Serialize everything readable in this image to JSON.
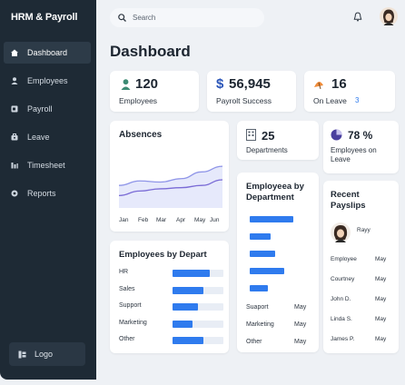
{
  "app": {
    "title": "HRM & Payroll"
  },
  "sidebar": {
    "items": [
      {
        "label": "Dashboard",
        "icon": "home-icon",
        "active": true
      },
      {
        "label": "Employees",
        "icon": "user-icon",
        "active": false
      },
      {
        "label": "Payroll",
        "icon": "wallet-icon",
        "active": false
      },
      {
        "label": "Leave",
        "icon": "briefcase-icon",
        "active": false
      },
      {
        "label": "Timesheet",
        "icon": "chart-icon",
        "active": false
      },
      {
        "label": "Reports",
        "icon": "report-icon",
        "active": false
      }
    ],
    "logout_label": "Logo"
  },
  "header": {
    "search_placeholder": "Search",
    "page_title": "Dashboard"
  },
  "stats": {
    "employees": {
      "value": "120",
      "label": "Employees"
    },
    "payroll": {
      "symbol": "$",
      "value": "56,945",
      "label": "Payrolt Success"
    },
    "leave": {
      "value": "16",
      "label": "On Leave",
      "extra": "3"
    },
    "departments": {
      "value": "25",
      "label": "Departments"
    },
    "percent": {
      "value": "78 %",
      "label": "Employees on Leave"
    }
  },
  "absences": {
    "title": "Absences",
    "months": [
      "Jan",
      "Feb",
      "Mar",
      "Apr",
      "May",
      "Jun"
    ]
  },
  "chart_data": {
    "type": "line",
    "title": "Absences",
    "categories": [
      "Jan",
      "Feb",
      "Mar",
      "Apr",
      "May",
      "Jun"
    ],
    "series": [
      {
        "values": [
          40,
          48,
          46,
          52,
          64,
          74
        ]
      },
      {
        "values": [
          22,
          30,
          34,
          36,
          40,
          50
        ]
      }
    ],
    "ylim": [
      0,
      100
    ],
    "grid": false,
    "legend": "none",
    "colors": [
      "#8f95e8",
      "#7a6bd6"
    ]
  },
  "emp_by_dept_bottom": {
    "title": "Employees by Depart",
    "rows": [
      {
        "label": "HR",
        "value": 0.73
      },
      {
        "label": "Sales",
        "value": 0.6
      },
      {
        "label": "Support",
        "value": 0.5
      },
      {
        "label": "Marketing",
        "value": 0.4
      },
      {
        "label": "Other",
        "value": 0.6
      }
    ]
  },
  "emp_by_dept_right": {
    "title": "Employeea by Department",
    "bars": [
      0.95,
      0.45,
      0.55,
      0.75,
      0.4
    ],
    "rows": [
      {
        "label": "Suaport",
        "value": "May"
      },
      {
        "label": "Marketing",
        "value": "May"
      },
      {
        "label": "Other",
        "value": "May"
      }
    ]
  },
  "payslips": {
    "title": "Recent Payslips",
    "first": "Rayy",
    "rows": [
      {
        "name": "Employee",
        "value": "May"
      },
      {
        "name": "Courtney",
        "value": "May"
      },
      {
        "name": "John D.",
        "value": "May"
      },
      {
        "name": "Linda S.",
        "value": "May"
      },
      {
        "name": "James P.",
        "value": "May"
      }
    ]
  },
  "colors": {
    "sidebar": "#1e2a35",
    "accent": "#2f7bee",
    "leave": "#ef8c3a",
    "percent": "#4a3f9e"
  }
}
